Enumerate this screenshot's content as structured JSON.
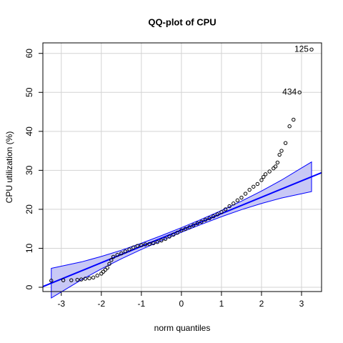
{
  "chart_data": {
    "type": "scatter",
    "title": "QQ-plot of CPU",
    "xlabel": "norm quantiles",
    "ylabel": "CPU utilization (%)",
    "xlim": [
      -3.46,
      3.5
    ],
    "ylim": [
      -1.1,
      62.7
    ],
    "xticks": [
      -3,
      -2,
      -1,
      0,
      1,
      2,
      3
    ],
    "yticks": [
      0,
      10,
      20,
      30,
      40,
      50,
      60
    ],
    "grid": true,
    "point_color": "#000000",
    "line_color": "#0000ff",
    "band_color": "#c8c8f5",
    "x": [
      -3.25,
      -2.95,
      -2.75,
      -2.6,
      -2.5,
      -2.4,
      -2.3,
      -2.2,
      -2.1,
      -2.0,
      -1.95,
      -1.9,
      -1.85,
      -1.8,
      -1.75,
      -1.7,
      -1.6,
      -1.5,
      -1.4,
      -1.3,
      -1.2,
      -1.1,
      -1.0,
      -0.9,
      -0.8,
      -0.7,
      -0.6,
      -0.5,
      -0.4,
      -0.3,
      -0.2,
      -0.1,
      0,
      0.1,
      0.2,
      0.3,
      0.4,
      0.5,
      0.6,
      0.7,
      0.8,
      0.9,
      1.0,
      1.1,
      1.2,
      1.3,
      1.4,
      1.5,
      1.6,
      1.7,
      1.8,
      1.9,
      2.0,
      2.05,
      2.1,
      2.2,
      2.3,
      2.35,
      2.4,
      2.45,
      2.5,
      2.6,
      2.7,
      2.8,
      2.95,
      3.25
    ],
    "y": [
      1.7,
      1.8,
      1.8,
      1.9,
      2,
      2.2,
      2.3,
      2.5,
      3,
      3.5,
      4,
      4.5,
      5,
      6,
      7,
      7.8,
      8.3,
      8.7,
      9.2,
      9.7,
      10.2,
      10.6,
      10.8,
      11,
      11.1,
      11.3,
      11.6,
      12,
      12.4,
      13,
      13.5,
      14,
      14.6,
      15,
      15.4,
      15.9,
      16.4,
      16.8,
      17.3,
      17.7,
      18.2,
      18.7,
      19.3,
      20,
      20.8,
      21.5,
      22.3,
      23,
      24,
      25,
      25.8,
      26.5,
      27.5,
      28.3,
      29,
      29.7,
      30.5,
      31,
      32,
      34,
      35,
      37,
      41.3,
      43,
      50,
      61
    ],
    "reference_line": {
      "intercept": 14.7,
      "slope": 4.2
    },
    "band": {
      "x": [
        -3.25,
        -3,
        -2.5,
        -2,
        -1.5,
        -1,
        -0.5,
        0,
        0.5,
        1,
        1.5,
        2,
        2.5,
        3,
        3.25
      ],
      "lower": [
        -2.75,
        -1.2,
        1.9,
        4.7,
        7.3,
        9.7,
        11.95,
        14.1,
        16.15,
        18.1,
        19.9,
        21.5,
        22.9,
        24,
        24.55
      ],
      "upper": [
        4.85,
        5.4,
        6.5,
        7.9,
        9.5,
        11.3,
        13.25,
        15.3,
        17.45,
        19.7,
        22.1,
        24.7,
        27.5,
        30.6,
        32.15
      ]
    },
    "annotations": [
      {
        "text": "125",
        "index": 65
      },
      {
        "text": "434",
        "index": 64
      }
    ]
  }
}
